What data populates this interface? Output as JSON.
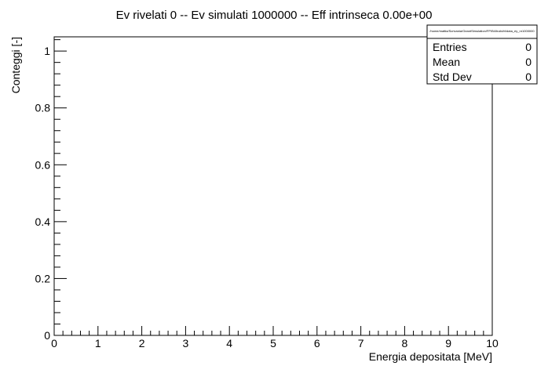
{
  "chart_data": {
    "type": "bar",
    "title": "Ev rivelati 0 -- Ev simulati 1000000 -- Eff intrinseca 0.00e+00",
    "xlabel": "Energia depositata [MeV]",
    "ylabel": "Conteggi [-]",
    "xlim": [
      0,
      10
    ],
    "ylim": [
      0,
      1.05
    ],
    "x_ticks": [
      "0",
      "1",
      "2",
      "3",
      "4",
      "5",
      "6",
      "7",
      "8",
      "9",
      "10"
    ],
    "y_ticks": [
      "0",
      "0.2",
      "0.4",
      "0.6",
      "0.8",
      "1"
    ],
    "x_tick_values": [
      0,
      1,
      2,
      3,
      4,
      5,
      6,
      7,
      8,
      9,
      10
    ],
    "y_tick_values": [
      0,
      0.2,
      0.4,
      0.6,
      0.8,
      1.0
    ],
    "series": [
      {
        "values": []
      }
    ],
    "grid": false,
    "stats_box": {
      "header": "/home/mattia/Scrivania/GeantSimulation/FP/B4/build/ri/data_ey_nr1000000",
      "rows": [
        {
          "label": "Entries",
          "value": "0"
        },
        {
          "label": "Mean",
          "value": "0"
        },
        {
          "label": "Std Dev",
          "value": "0"
        }
      ]
    }
  }
}
